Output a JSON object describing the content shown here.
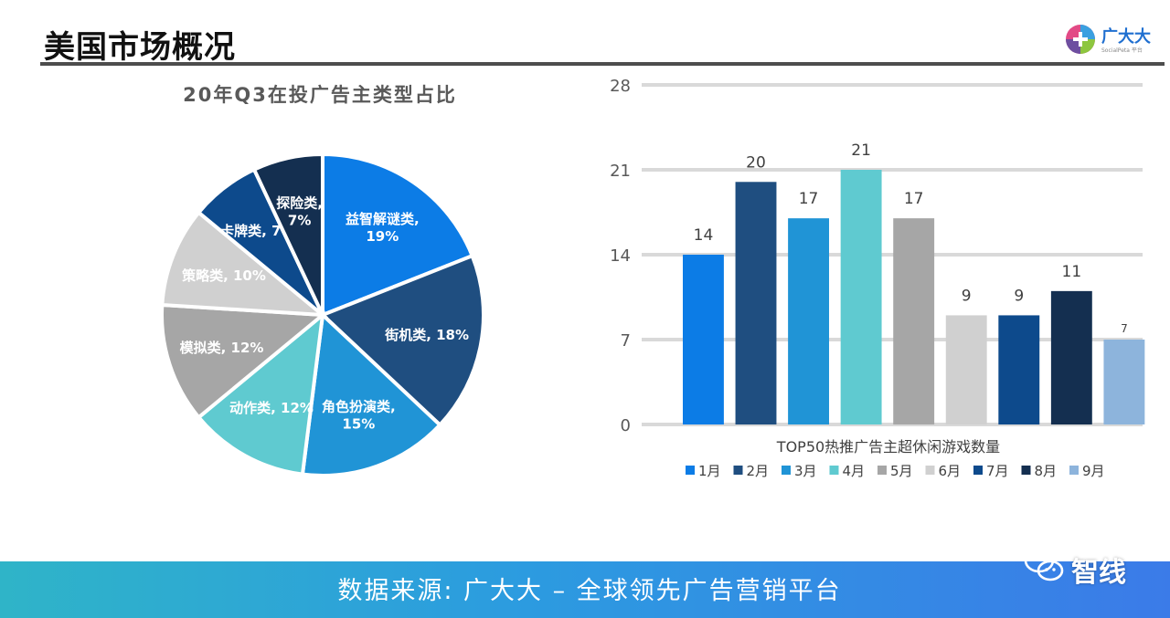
{
  "header": {
    "title": "美国市场概况"
  },
  "logo": {
    "name": "广大大",
    "sub": "SocialPeta 平台"
  },
  "footer": {
    "source": "数据来源: 广大大 – 全球领先广告营销平台"
  },
  "watermark": {
    "text": "智线"
  },
  "chart_data": [
    {
      "type": "pie",
      "title": "20年Q3在投广告主类型占比",
      "slices": [
        {
          "label": "益智解谜类",
          "display": "益智解谜类,\n19%",
          "value": 19,
          "color": "#0c7ce6",
          "label_color": "#ffffff"
        },
        {
          "label": "街机类",
          "display": "街机类, 18%",
          "value": 18,
          "color": "#1f4e80",
          "label_color": "#ffffff"
        },
        {
          "label": "角色扮演类",
          "display": "角色扮演类,\n15%",
          "value": 15,
          "color": "#2094d6",
          "label_color": "#ffffff"
        },
        {
          "label": "动作类",
          "display": "动作类, 12%",
          "value": 12,
          "color": "#5fcad0",
          "label_color": "#ffffff"
        },
        {
          "label": "模拟类",
          "display": "模拟类, 12%",
          "value": 12,
          "color": "#a6a6a6",
          "label_color": "#ffffff"
        },
        {
          "label": "策略类",
          "display": "策略类, 10%",
          "value": 10,
          "color": "#d0d0d0",
          "label_color": "#ffffff"
        },
        {
          "label": "卡牌类",
          "display": "卡牌类, 7%",
          "value": 7,
          "color": "#0d4a8c",
          "label_color": "#ffffff"
        },
        {
          "label": "探险类",
          "display": "探险类,\n7%",
          "value": 7,
          "color": "#142f50",
          "label_color": "#ffffff"
        }
      ]
    },
    {
      "type": "bar",
      "title": "TOP50热推广告主超休闲游戏数量",
      "categories": [
        "1月",
        "2月",
        "3月",
        "4月",
        "5月",
        "6月",
        "7月",
        "8月",
        "9月"
      ],
      "values": [
        14,
        20,
        17,
        21,
        17,
        9,
        9,
        11,
        7
      ],
      "colors": [
        "#0c7ce6",
        "#1f4e80",
        "#2094d6",
        "#5fcad0",
        "#a6a6a6",
        "#d0d0d0",
        "#0d4a8c",
        "#142f50",
        "#8db4dc"
      ],
      "ylim": [
        0,
        28
      ],
      "yticks": [
        0,
        7,
        14,
        21,
        28
      ],
      "grid": true,
      "legend": "bottom"
    }
  ]
}
